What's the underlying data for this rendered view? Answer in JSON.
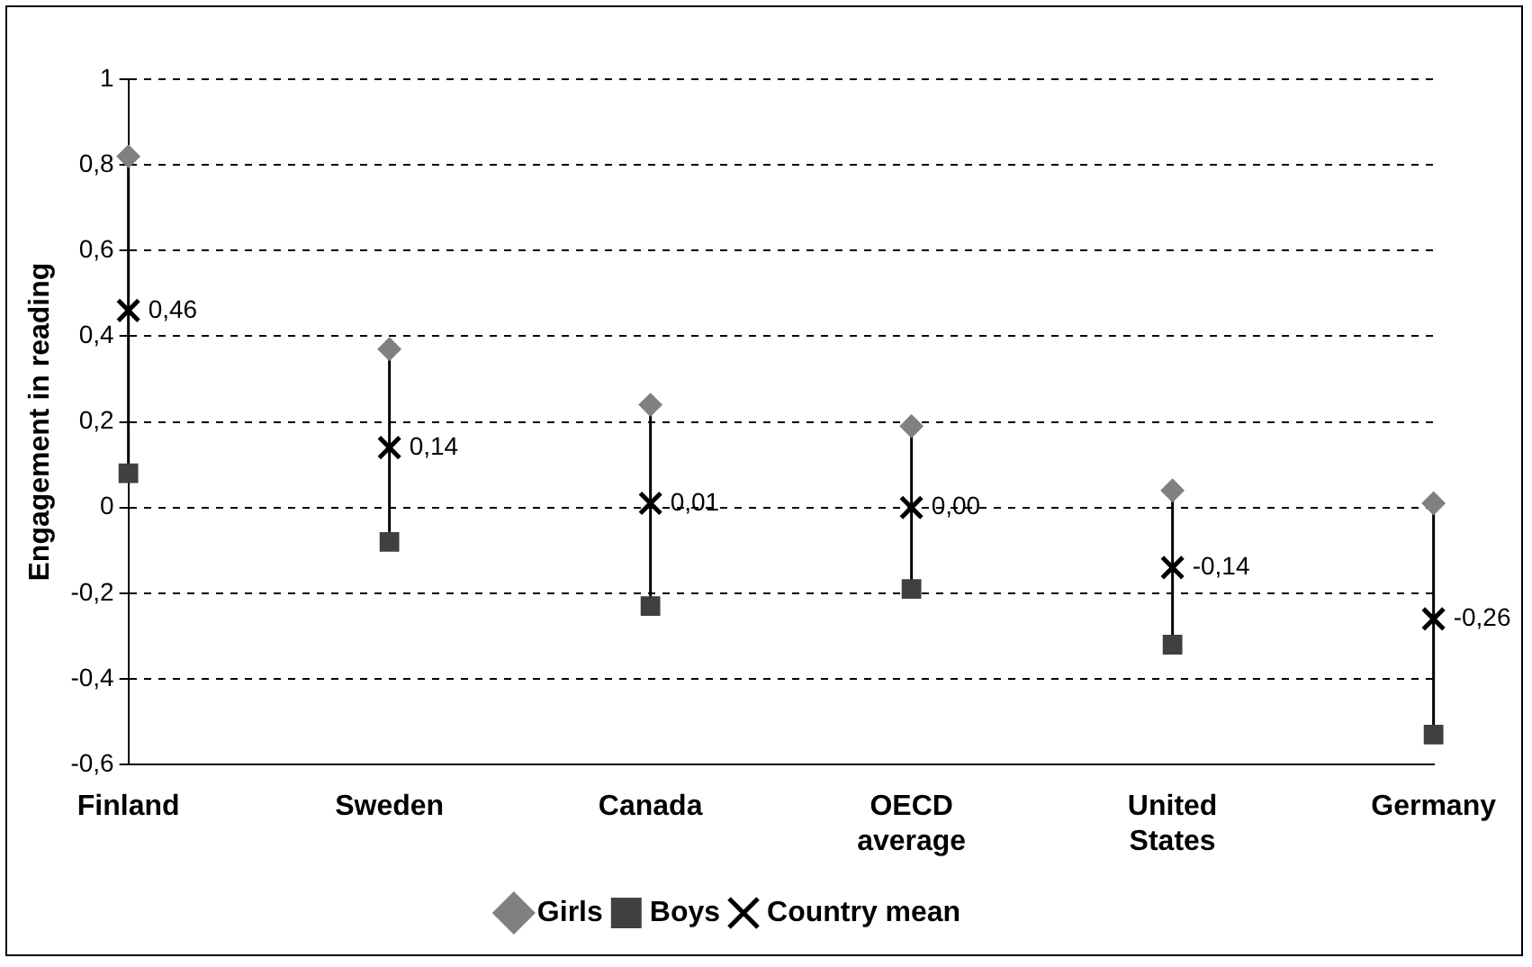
{
  "chart_data": {
    "type": "scatter",
    "ylabel": "Engagement in reading",
    "categories": [
      "Finland",
      "Sweden",
      "Canada",
      "OECD\naverage",
      "United\nStates",
      "Germany"
    ],
    "series": [
      {
        "name": "Girls",
        "color": "#808080",
        "marker": "diamond",
        "values": [
          0.82,
          0.37,
          0.24,
          0.19,
          0.04,
          0.01
        ]
      },
      {
        "name": "Boys",
        "color": "#404040",
        "marker": "square",
        "values": [
          0.08,
          -0.08,
          -0.23,
          -0.19,
          -0.32,
          -0.53
        ]
      },
      {
        "name": "Country mean",
        "color": "#000000",
        "marker": "cross",
        "values": [
          0.46,
          0.14,
          0.01,
          0.0,
          -0.14,
          -0.26
        ],
        "value_labels": [
          "0,46",
          "0,14",
          "0,01",
          "0,00",
          "-0,14",
          "-0,26"
        ]
      }
    ],
    "ylim": [
      -0.6,
      1
    ],
    "yticks": [
      {
        "value": -0.6,
        "label": "-0,6"
      },
      {
        "value": -0.4,
        "label": "-0,4"
      },
      {
        "value": -0.2,
        "label": "-0,2"
      },
      0,
      {
        "value": 0.2,
        "label": "0,2"
      },
      {
        "value": 0.4,
        "label": "0,4"
      },
      {
        "value": 0.6,
        "label": "0,6"
      },
      {
        "value": 0.8,
        "label": "0,8"
      },
      1
    ],
    "grid": "y",
    "legend": "bottom"
  }
}
